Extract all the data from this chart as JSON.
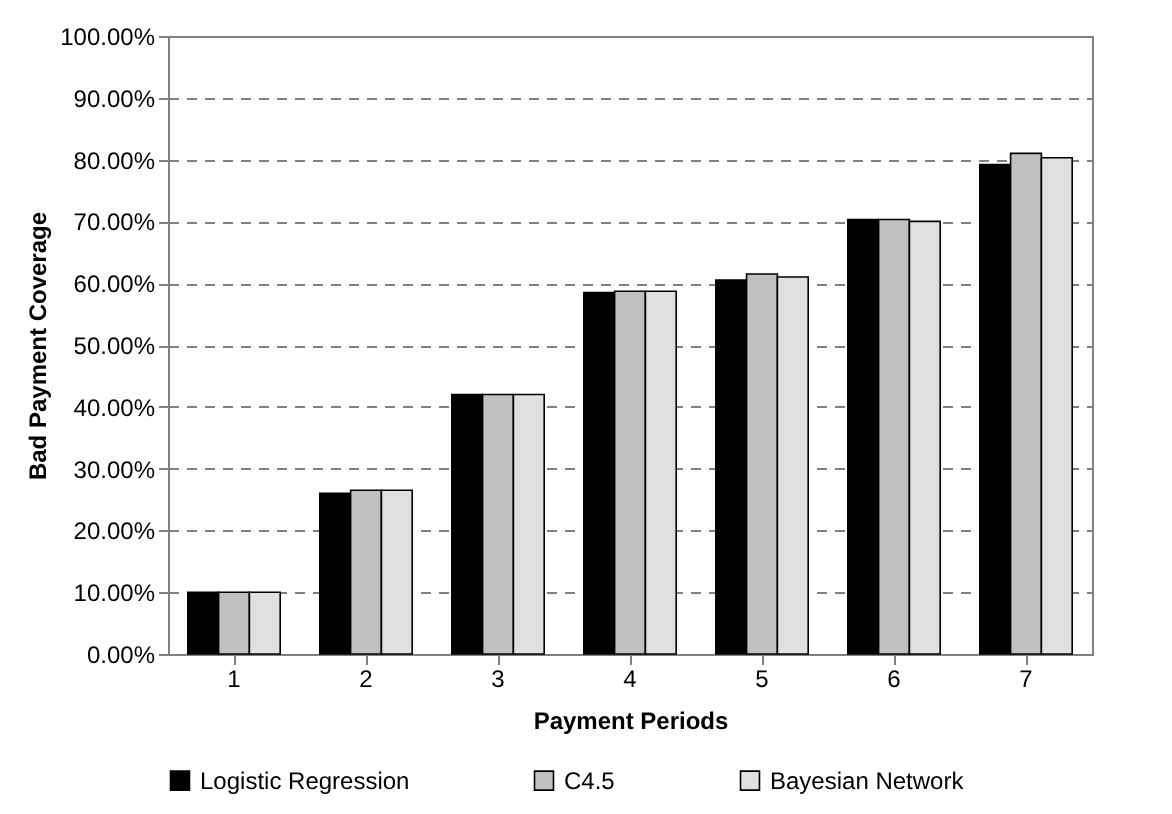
{
  "chart_data": {
    "type": "bar",
    "xlabel": "Payment Periods",
    "ylabel": "Bad Payment Coverage",
    "categories": [
      "1",
      "2",
      "3",
      "4",
      "5",
      "6",
      "7"
    ],
    "series": [
      {
        "name": "Logistic Regression",
        "color": "#000000",
        "values": [
          10,
          26,
          42,
          58.5,
          60.5,
          70.3,
          79.2
        ]
      },
      {
        "name": "C4.5",
        "color": "#c0c0c0",
        "values": [
          10,
          26.5,
          42,
          58.7,
          61.5,
          70.3,
          81
        ]
      },
      {
        "name": "Bayesian Network",
        "color": "#e0e0e0",
        "values": [
          10,
          26.5,
          42,
          58.7,
          61,
          70,
          80.3
        ]
      }
    ],
    "ylim": [
      0,
      100
    ],
    "yticks": [
      {
        "value": 0,
        "label": "0.00%"
      },
      {
        "value": 10,
        "label": "10.00%"
      },
      {
        "value": 20,
        "label": "20.00%"
      },
      {
        "value": 30,
        "label": "30.00%"
      },
      {
        "value": 40,
        "label": "40.00%"
      },
      {
        "value": 50,
        "label": "50.00%"
      },
      {
        "value": 60,
        "label": "60.00%"
      },
      {
        "value": 70,
        "label": "70.00%"
      },
      {
        "value": 80,
        "label": "80.00%"
      },
      {
        "value": 90,
        "label": "90.00%"
      },
      {
        "value": 100,
        "label": "100.00%"
      }
    ],
    "grid": "y",
    "legend": "bottom"
  }
}
